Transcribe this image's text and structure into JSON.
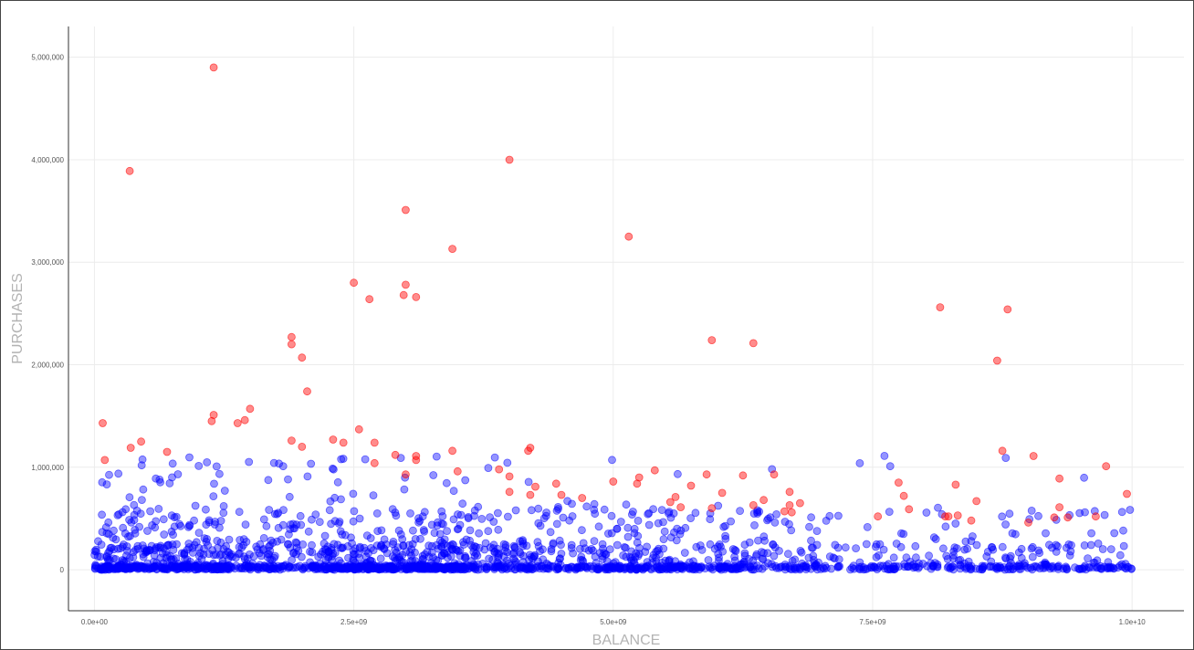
{
  "chart_data": {
    "type": "scatter",
    "title": "",
    "xlabel": "BALANCE",
    "ylabel": "PURCHASES",
    "xlim": [
      -250000000,
      10500000000
    ],
    "ylim": [
      -400000,
      5300000
    ],
    "grid": true,
    "legend": "none",
    "x_ticks": [
      0,
      2500000000,
      5000000000,
      7500000000,
      10000000000
    ],
    "x_tick_labels": [
      "0.0e+00",
      "2.5e+09",
      "5.0e+09",
      "7.5e+09",
      "1.0e+10"
    ],
    "y_ticks": [
      0,
      1000000,
      2000000,
      3000000,
      4000000,
      5000000
    ],
    "y_tick_labels": [
      "0",
      "1,000,000",
      "2,000,000",
      "3,000,000",
      "4,000,000",
      "5,000,000"
    ],
    "colors": {
      "outlier": "#ff0000",
      "normal": "#0000ff"
    },
    "series": [
      {
        "color": "#ff0000",
        "points": [
          [
            1150000000,
            4900000
          ],
          [
            340000000,
            3890000
          ],
          [
            4000000000,
            4000000
          ],
          [
            3000000000,
            3510000
          ],
          [
            3450000000,
            3130000
          ],
          [
            5150000000,
            3250000
          ],
          [
            2500000000,
            2800000
          ],
          [
            3000000000,
            2780000
          ],
          [
            2650000000,
            2640000
          ],
          [
            2980000000,
            2680000
          ],
          [
            3100000000,
            2660000
          ],
          [
            1900000000,
            2270000
          ],
          [
            1900000000,
            2200000
          ],
          [
            2000000000,
            2070000
          ],
          [
            5950000000,
            2240000
          ],
          [
            6350000000,
            2210000
          ],
          [
            8150000000,
            2560000
          ],
          [
            8800000000,
            2540000
          ],
          [
            8700000000,
            2040000
          ],
          [
            2050000000,
            1740000
          ],
          [
            1500000000,
            1570000
          ],
          [
            1450000000,
            1460000
          ],
          [
            1150000000,
            1510000
          ],
          [
            1130000000,
            1450000
          ],
          [
            1380000000,
            1430000
          ],
          [
            80000000,
            1430000
          ],
          [
            100000000,
            1070000
          ],
          [
            450000000,
            1250000
          ],
          [
            350000000,
            1190000
          ],
          [
            700000000,
            1150000
          ],
          [
            1900000000,
            1260000
          ],
          [
            2000000000,
            1200000
          ],
          [
            2300000000,
            1270000
          ],
          [
            2400000000,
            1240000
          ],
          [
            2550000000,
            1370000
          ],
          [
            2700000000,
            1240000
          ],
          [
            2900000000,
            1120000
          ],
          [
            3100000000,
            1110000
          ],
          [
            3100000000,
            1070000
          ],
          [
            3450000000,
            1160000
          ],
          [
            4200000000,
            1190000
          ],
          [
            4180000000,
            1160000
          ],
          [
            2700000000,
            1040000
          ],
          [
            3000000000,
            930000
          ],
          [
            3500000000,
            960000
          ],
          [
            3900000000,
            980000
          ],
          [
            4000000000,
            910000
          ],
          [
            4000000000,
            760000
          ],
          [
            4250000000,
            810000
          ],
          [
            4200000000,
            730000
          ],
          [
            4450000000,
            840000
          ],
          [
            4500000000,
            730000
          ],
          [
            4700000000,
            700000
          ],
          [
            5000000000,
            860000
          ],
          [
            5250000000,
            900000
          ],
          [
            5230000000,
            840000
          ],
          [
            5400000000,
            970000
          ],
          [
            5550000000,
            660000
          ],
          [
            5600000000,
            710000
          ],
          [
            5650000000,
            610000
          ],
          [
            5750000000,
            820000
          ],
          [
            5900000000,
            930000
          ],
          [
            5950000000,
            600000
          ],
          [
            6050000000,
            750000
          ],
          [
            6250000000,
            920000
          ],
          [
            6350000000,
            630000
          ],
          [
            6450000000,
            680000
          ],
          [
            6550000000,
            930000
          ],
          [
            6700000000,
            760000
          ],
          [
            6700000000,
            630000
          ],
          [
            6650000000,
            570000
          ],
          [
            6720000000,
            560000
          ],
          [
            6800000000,
            650000
          ],
          [
            7550000000,
            520000
          ],
          [
            7750000000,
            850000
          ],
          [
            7800000000,
            720000
          ],
          [
            7850000000,
            590000
          ],
          [
            8200000000,
            520000
          ],
          [
            8230000000,
            520000
          ],
          [
            8300000000,
            830000
          ],
          [
            8320000000,
            530000
          ],
          [
            8500000000,
            670000
          ],
          [
            8450000000,
            480000
          ],
          [
            8750000000,
            1160000
          ],
          [
            9050000000,
            1110000
          ],
          [
            9000000000,
            460000
          ],
          [
            9250000000,
            510000
          ],
          [
            9300000000,
            890000
          ],
          [
            9300000000,
            610000
          ],
          [
            9380000000,
            510000
          ],
          [
            9650000000,
            520000
          ],
          [
            9750000000,
            1010000
          ],
          [
            9950000000,
            740000
          ]
        ]
      },
      {
        "color": "#0000ff",
        "generated": true,
        "count": 2100,
        "value_range": {
          "x": [
            0,
            10000000000
          ],
          "y": [
            0,
            1140000
          ]
        }
      }
    ]
  }
}
